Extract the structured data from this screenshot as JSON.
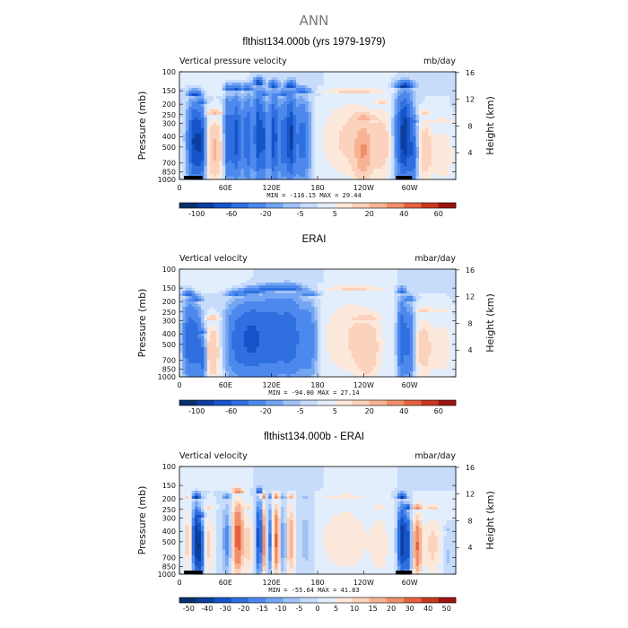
{
  "figure": {
    "title": "ANN"
  },
  "colors": {
    "scale": [
      "#08306b",
      "#0b3e9e",
      "#1554c9",
      "#2f6fe0",
      "#4d89ec",
      "#73a5f2",
      "#9fc2f7",
      "#c7dcfb",
      "#e3eefc",
      "#fde9dc",
      "#fbd2bb",
      "#f7b394",
      "#f08e69",
      "#e4623f",
      "#c7381f",
      "#9b1510"
    ]
  },
  "chart_data": [
    {
      "type": "heatmap",
      "title": "flthist134.000b (yrs 1979-1979)",
      "left_label": "Vertical pressure velocity",
      "units": "mb/day",
      "ylabel": "Pressure (mb)",
      "ylabel_right": "Height (km)",
      "ylim": [
        1000,
        100
      ],
      "yticks": [
        100,
        150,
        200,
        250,
        300,
        400,
        500,
        700,
        850,
        1000
      ],
      "height_ticks_km": [
        4,
        8,
        12,
        16
      ],
      "xlim": [
        0,
        360
      ],
      "xticks": [
        {
          "v": 0,
          "t": "0"
        },
        {
          "v": 60,
          "t": "60E"
        },
        {
          "v": 120,
          "t": "120E"
        },
        {
          "v": 180,
          "t": "180"
        },
        {
          "v": 240,
          "t": "120W"
        },
        {
          "v": 300,
          "t": "60W"
        }
      ],
      "min": -116.15,
      "max": 29.44,
      "stats_text": "MIN = -116.15   MAX =  29.44",
      "colorbar_labels": [
        "-100",
        "-60",
        "-20",
        "-5",
        "5",
        "20",
        "40",
        "60"
      ],
      "land": [
        [
          6,
          30
        ],
        [
          282,
          303
        ]
      ],
      "features": [
        {
          "lon": 20,
          "w": 6,
          "amp": -85,
          "top": 170
        },
        {
          "lon": 29,
          "w": 3,
          "amp": -55,
          "top": 200
        },
        {
          "lon": 46,
          "w": 7,
          "amp": 22,
          "top": 250
        },
        {
          "lon": 63,
          "w": 3,
          "amp": -55,
          "top": 150
        },
        {
          "lon": 74,
          "w": 5,
          "amp": -70,
          "top": 150
        },
        {
          "lon": 89,
          "w": 4,
          "amp": -60,
          "top": 150
        },
        {
          "lon": 103,
          "w": 4,
          "amp": -80,
          "top": 130
        },
        {
          "lon": 111,
          "w": 2.5,
          "amp": -50,
          "top": 170
        },
        {
          "lon": 123,
          "w": 4,
          "amp": -75,
          "top": 140
        },
        {
          "lon": 135,
          "w": 4,
          "amp": -50,
          "top": 170
        },
        {
          "lon": 145,
          "w": 4,
          "amp": -80,
          "top": 140
        },
        {
          "lon": 160,
          "w": 7,
          "amp": -50,
          "top": 160
        },
        {
          "lon": 225,
          "w": 28,
          "amp": 12,
          "top": 160
        },
        {
          "lon": 240,
          "w": 8,
          "amp": 22,
          "top": 280
        },
        {
          "lon": 265,
          "w": 8,
          "amp": 10,
          "top": 200
        },
        {
          "lon": 293,
          "w": 7,
          "amp": -95,
          "top": 140
        },
        {
          "lon": 305,
          "w": 3,
          "amp": -40,
          "top": 300
        },
        {
          "lon": 320,
          "w": 6,
          "amp": 16,
          "top": 250
        },
        {
          "lon": 343,
          "w": 10,
          "amp": 10,
          "top": 300
        }
      ]
    },
    {
      "type": "heatmap",
      "title": "ERAI",
      "left_label": "Vertical velocity",
      "units": "mbar/day",
      "ylabel": "Pressure (mb)",
      "ylabel_right": "Height (km)",
      "ylim": [
        1000,
        100
      ],
      "yticks": [
        100,
        150,
        200,
        250,
        300,
        400,
        500,
        700,
        850,
        1000
      ],
      "height_ticks_km": [
        4,
        8,
        12,
        16
      ],
      "xlim": [
        0,
        360
      ],
      "xticks": [
        {
          "v": 0,
          "t": "0"
        },
        {
          "v": 60,
          "t": "60E"
        },
        {
          "v": 120,
          "t": "120E"
        },
        {
          "v": 180,
          "t": "180"
        },
        {
          "v": 240,
          "t": "120W"
        },
        {
          "v": 300,
          "t": "60W"
        }
      ],
      "min": -94.8,
      "max": 27.14,
      "stats_text": "MIN = -94.80   MAX =  27.14",
      "colorbar_labels": [
        "-100",
        "-60",
        "-20",
        "-5",
        "5",
        "20",
        "40",
        "60"
      ],
      "land": [],
      "features": [
        {
          "lon": 12,
          "w": 5,
          "amp": -50,
          "top": 180
        },
        {
          "lon": 22,
          "w": 5,
          "amp": -45,
          "top": 200
        },
        {
          "lon": 30,
          "w": 3,
          "amp": -40,
          "top": 400
        },
        {
          "lon": 44,
          "w": 6,
          "amp": 20,
          "top": 300
        },
        {
          "lon": 75,
          "w": 10,
          "amp": -45,
          "top": 180
        },
        {
          "lon": 95,
          "w": 10,
          "amp": -55,
          "top": 170
        },
        {
          "lon": 120,
          "w": 12,
          "amp": -55,
          "top": 160
        },
        {
          "lon": 145,
          "w": 10,
          "amp": -50,
          "top": 160
        },
        {
          "lon": 168,
          "w": 8,
          "amp": -35,
          "top": 180
        },
        {
          "lon": 225,
          "w": 30,
          "amp": 10,
          "top": 160
        },
        {
          "lon": 245,
          "w": 10,
          "amp": 12,
          "top": 300
        },
        {
          "lon": 290,
          "w": 4,
          "amp": -55,
          "top": 170
        },
        {
          "lon": 300,
          "w": 4,
          "amp": -45,
          "top": 200
        },
        {
          "lon": 318,
          "w": 8,
          "amp": 14,
          "top": 250
        },
        {
          "lon": 343,
          "w": 10,
          "amp": 8,
          "top": 250
        }
      ]
    },
    {
      "type": "heatmap",
      "title": "flthist134.000b - ERAI",
      "left_label": "Vertical velocity",
      "units": "mbar/day",
      "ylabel": "Pressure (mb)",
      "ylabel_right": "Height (km)",
      "ylim": [
        1000,
        100
      ],
      "yticks": [
        100,
        150,
        200,
        250,
        300,
        400,
        500,
        700,
        850,
        1000
      ],
      "height_ticks_km": [
        4,
        8,
        12,
        16
      ],
      "xlim": [
        0,
        360
      ],
      "xticks": [
        {
          "v": 0,
          "t": "0"
        },
        {
          "v": 60,
          "t": "60E"
        },
        {
          "v": 120,
          "t": "120E"
        },
        {
          "v": 180,
          "t": "180"
        },
        {
          "v": 240,
          "t": "120W"
        },
        {
          "v": 300,
          "t": "60W"
        }
      ],
      "min": -55.64,
      "max": 41.83,
      "stats_text": "MIN = -55.64   MAX =  41.83",
      "colorbar_labels": [
        "-50",
        "-40",
        "-30",
        "-20",
        "-15",
        "-10",
        "-5",
        "0",
        "5",
        "10",
        "15",
        "20",
        "30",
        "40",
        "50"
      ],
      "land": [
        [
          6,
          30
        ],
        [
          282,
          303
        ]
      ],
      "features": [
        {
          "lon": 12,
          "w": 4,
          "amp": 14,
          "top": 200
        },
        {
          "lon": 22,
          "w": 4,
          "amp": -45,
          "top": 200
        },
        {
          "lon": 28,
          "w": 3,
          "amp": -30,
          "top": 300
        },
        {
          "lon": 38,
          "w": 4,
          "amp": 12,
          "top": 250
        },
        {
          "lon": 62,
          "w": 4,
          "amp": -18,
          "top": 200
        },
        {
          "lon": 76,
          "w": 5,
          "amp": 35,
          "top": 180
        },
        {
          "lon": 90,
          "w": 4,
          "amp": 12,
          "top": 250
        },
        {
          "lon": 104,
          "w": 3,
          "amp": -40,
          "top": 180
        },
        {
          "lon": 110,
          "w": 2.5,
          "amp": 30,
          "top": 200
        },
        {
          "lon": 118,
          "w": 3,
          "amp": -25,
          "top": 200
        },
        {
          "lon": 126,
          "w": 4,
          "amp": 32,
          "top": 200
        },
        {
          "lon": 135,
          "w": 3,
          "amp": -18,
          "top": 200
        },
        {
          "lon": 145,
          "w": 4,
          "amp": 20,
          "top": 200
        },
        {
          "lon": 165,
          "w": 8,
          "amp": -8,
          "top": 200
        },
        {
          "lon": 215,
          "w": 25,
          "amp": 9,
          "top": 200
        },
        {
          "lon": 262,
          "w": 8,
          "amp": 8,
          "top": 250
        },
        {
          "lon": 290,
          "w": 4,
          "amp": -45,
          "top": 200
        },
        {
          "lon": 298,
          "w": 3,
          "amp": -30,
          "top": 250
        },
        {
          "lon": 310,
          "w": 4,
          "amp": 30,
          "top": 250
        },
        {
          "lon": 330,
          "w": 8,
          "amp": 12,
          "top": 250
        },
        {
          "lon": 350,
          "w": 5,
          "amp": -6,
          "top": 400
        }
      ]
    }
  ]
}
